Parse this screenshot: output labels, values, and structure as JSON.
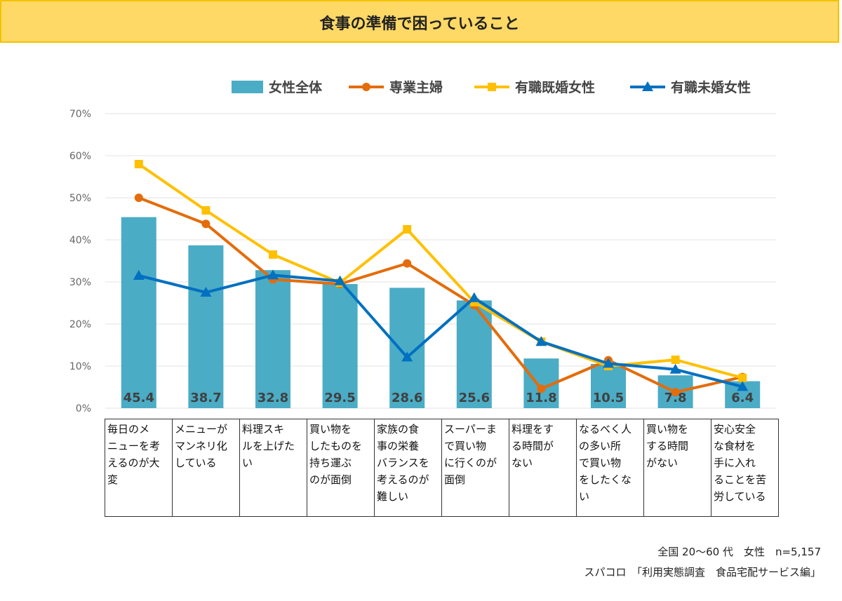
{
  "header": {
    "title": "食事の準備で困っていること"
  },
  "chart_data": {
    "type": "bar",
    "title": "食事の準備で困っていること",
    "categories": [
      "毎日のメニューを考えるのが大変",
      "メニューがマンネリ化している",
      "料理スキルを上げたい",
      "買い物をしたものを持ち運ぶのが面倒",
      "家族の食事の栄養バランスを考えるのが難しい",
      "スーパーまで買い物に行くのが面倒",
      "料理をする時間がない",
      "なるべく人の多い所で買い物をしたくない",
      "買い物をする時間がない",
      "安心安全な食材を手に入れることを苦労している"
    ],
    "series": [
      {
        "name": "女性全体",
        "kind": "bar",
        "color": "#4bacc6",
        "values": [
          45.4,
          38.7,
          32.8,
          29.5,
          28.6,
          25.6,
          11.8,
          10.5,
          7.8,
          6.4
        ],
        "labels": [
          "45.4",
          "38.7",
          "32.8",
          "29.5",
          "28.6",
          "25.6",
          "11.8",
          "10.5",
          "7.8",
          "6.4"
        ]
      },
      {
        "name": "専業主婦",
        "kind": "line",
        "marker": "circle",
        "color": "#e46c0a",
        "values": [
          50,
          43.8,
          30.6,
          29.5,
          34.4,
          24.5,
          4.6,
          11.4,
          3.8,
          7.4
        ]
      },
      {
        "name": "有職既婚女性",
        "kind": "line",
        "marker": "square",
        "color": "#ffc000",
        "values": [
          58,
          47,
          36.5,
          29.8,
          42.5,
          25.2,
          15.8,
          10,
          11.5,
          7.2
        ]
      },
      {
        "name": "有職未婚女性",
        "kind": "line",
        "marker": "triangle",
        "color": "#0070c0",
        "values": [
          31.5,
          27.5,
          31.6,
          30.2,
          12.1,
          26.2,
          15.8,
          10.6,
          9.2,
          5.1
        ]
      }
    ],
    "yticks": [
      "0%",
      "10%",
      "20%",
      "30%",
      "40%",
      "50%",
      "60%",
      "70%"
    ],
    "ylim": [
      0,
      70
    ],
    "ylabel": "",
    "xlabel": "",
    "grid": true,
    "legend": "top-right"
  },
  "table_rows": [
    [
      "毎日のメ",
      "ニューを考",
      "えるのが大",
      "変"
    ],
    [
      "メニューが",
      "マンネリ化",
      "している"
    ],
    [
      "料理スキ",
      "ルを上げた",
      "い"
    ],
    [
      "買い物を",
      "したものを",
      "持ち運ぶ",
      "のが面倒"
    ],
    [
      "家族の食",
      "事の栄養",
      "バランスを",
      "考えるのが",
      "難しい"
    ],
    [
      "スーパーま",
      "で買い物",
      "に行くのが",
      "面倒"
    ],
    [
      "料理をす",
      "る時間が",
      "ない"
    ],
    [
      "なるべく人",
      "の多い所",
      "で買い物",
      "をしたくな",
      "い"
    ],
    [
      "買い物を",
      "する時間",
      "がない"
    ],
    [
      "安心安全",
      "な食材を",
      "手に入れ",
      "ることを苦",
      "労している"
    ]
  ],
  "footer": {
    "sample": "全国 20～60 代　女性　n=5,157",
    "source": "スパコロ　「利用実態調査　食品宅配サービス編」"
  }
}
